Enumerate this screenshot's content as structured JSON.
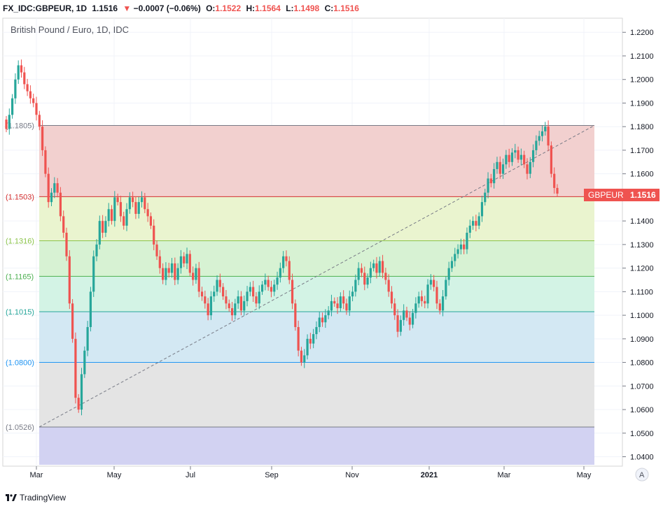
{
  "header": {
    "symbol": "FX_IDC:GBPEUR, 1D",
    "price": "1.1516",
    "change_arrow": "▼",
    "change": "−0.0007 (−0.06%)",
    "open_label": "O:",
    "open": "1.1522",
    "high_label": "H:",
    "high": "1.1564",
    "low_label": "L:",
    "low": "1.1498",
    "close_label": "C:",
    "close": "1.1516"
  },
  "chart_title": "British Pound / Euro, 1D, IDC",
  "price_tag": {
    "label": "GBPEUR",
    "value": "1.1516"
  },
  "auto_scale_label": "A",
  "brand": "TradingView",
  "colors": {
    "up": "#26a69a",
    "down": "#ef5350",
    "accent": "#ef5350"
  },
  "chart_data": {
    "type": "candlestick",
    "title": "British Pound / Euro, 1D, IDC",
    "y_ticks": [
      "1.2200",
      "1.2100",
      "1.2000",
      "1.1900",
      "1.1800",
      "1.1700",
      "1.1600",
      "1.1500",
      "1.1400",
      "1.1300",
      "1.1200",
      "1.1100",
      "1.1000",
      "1.0900",
      "1.0800",
      "1.0700",
      "1.0600",
      "1.0500",
      "1.0400"
    ],
    "ylim": [
      1.036,
      1.226
    ],
    "x_ticks": [
      "Mar",
      "May",
      "Jul",
      "Sep",
      "Nov",
      "2021",
      "Mar",
      "May"
    ],
    "fib_levels": [
      {
        "label": "(1.1805)",
        "value": 1.1805,
        "color": "#787b86",
        "fill": "#f2d0cf"
      },
      {
        "label": "(1.1503)",
        "value": 1.1503,
        "color": "#d32f2f",
        "fill": "#eaf4cf"
      },
      {
        "label": "(1.1316)",
        "value": 1.1316,
        "color": "#8bc34a",
        "fill": "#d7f2d3"
      },
      {
        "label": "(1.1165)",
        "value": 1.1165,
        "color": "#4caf50",
        "fill": "#d3f3e5"
      },
      {
        "label": "(1.1015)",
        "value": 1.1015,
        "color": "#26a69a",
        "fill": "#d3e8f3"
      },
      {
        "label": "(1.0800)",
        "value": 1.08,
        "color": "#2196f3",
        "fill": "#e4e4e4"
      },
      {
        "label": "(1.0526)",
        "value": 1.0526,
        "color": "#787b86",
        "fill": "#d2d2f2"
      }
    ],
    "trend_line": {
      "start": 1.0526,
      "end": 1.1805
    },
    "series": [
      {
        "close": [
          1.179,
          1.185,
          1.192,
          1.2,
          1.206,
          1.203,
          1.198,
          1.195,
          1.192,
          1.19,
          1.185,
          1.18,
          1.17,
          1.16,
          1.148,
          1.152,
          1.156,
          1.152,
          1.142,
          1.135,
          1.125,
          1.105,
          1.09,
          1.065,
          1.06,
          1.075,
          1.085,
          1.095,
          1.11,
          1.125,
          1.13,
          1.14,
          1.135,
          1.14,
          1.145,
          1.14,
          1.15,
          1.148,
          1.142,
          1.138,
          1.145,
          1.15,
          1.148,
          1.143,
          1.148,
          1.15,
          1.145,
          1.142,
          1.138,
          1.13,
          1.125,
          1.12,
          1.115,
          1.12,
          1.118,
          1.122,
          1.115,
          1.12,
          1.125,
          1.122,
          1.126,
          1.118,
          1.115,
          1.12,
          1.11,
          1.108,
          1.105,
          1.1,
          1.108,
          1.11,
          1.115,
          1.112,
          1.108,
          1.105,
          1.103,
          1.1,
          1.105,
          1.108,
          1.102,
          1.106,
          1.11,
          1.112,
          1.108,
          1.105,
          1.11,
          1.113,
          1.115,
          1.112,
          1.11,
          1.113,
          1.116,
          1.12,
          1.125,
          1.123,
          1.115,
          1.105,
          1.095,
          1.085,
          1.08,
          1.083,
          1.09,
          1.088,
          1.092,
          1.095,
          1.099,
          1.097,
          1.1,
          1.102,
          1.106,
          1.105,
          1.103,
          1.108,
          1.105,
          1.102,
          1.108,
          1.11,
          1.115,
          1.12,
          1.118,
          1.113,
          1.116,
          1.12,
          1.122,
          1.118,
          1.123,
          1.118,
          1.115,
          1.11,
          1.105,
          1.1,
          1.093,
          1.098,
          1.102,
          1.099,
          1.096,
          1.101,
          1.105,
          1.108,
          1.106,
          1.105,
          1.113,
          1.115,
          1.112,
          1.105,
          1.102,
          1.108,
          1.115,
          1.12,
          1.123,
          1.126,
          1.128,
          1.13,
          1.128,
          1.135,
          1.138,
          1.14,
          1.138,
          1.142,
          1.148,
          1.152,
          1.158,
          1.156,
          1.162,
          1.165,
          1.16,
          1.164,
          1.168,
          1.165,
          1.169,
          1.17,
          1.166,
          1.168,
          1.164,
          1.16,
          1.165,
          1.17,
          1.174,
          1.176,
          1.178,
          1.18,
          1.172,
          1.16,
          1.154,
          1.1516
        ]
      }
    ]
  }
}
